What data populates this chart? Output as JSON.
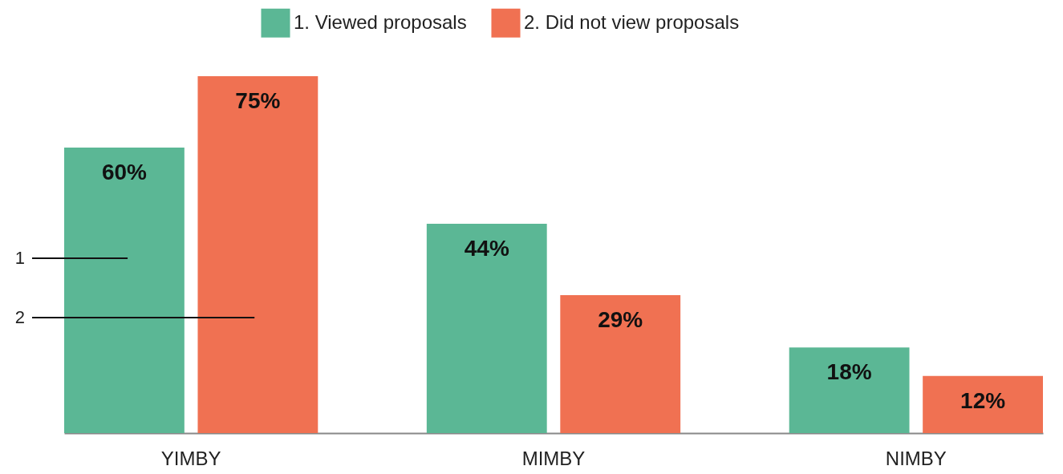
{
  "chart_data": {
    "type": "bar",
    "categories": [
      "YIMBY",
      "MIMBY",
      "NIMBY"
    ],
    "series": [
      {
        "name": "1. Viewed proposals",
        "color": "#5bb795",
        "values": [
          60,
          44,
          18
        ],
        "value_labels": [
          "60%",
          "44%",
          "18%"
        ]
      },
      {
        "name": "2. Did not view proposals",
        "color": "#f07152",
        "values": [
          75,
          29,
          12
        ],
        "value_labels": [
          "75%",
          "29%",
          "12%"
        ]
      }
    ],
    "legend": "top",
    "annotations": [
      "1",
      "2"
    ]
  }
}
